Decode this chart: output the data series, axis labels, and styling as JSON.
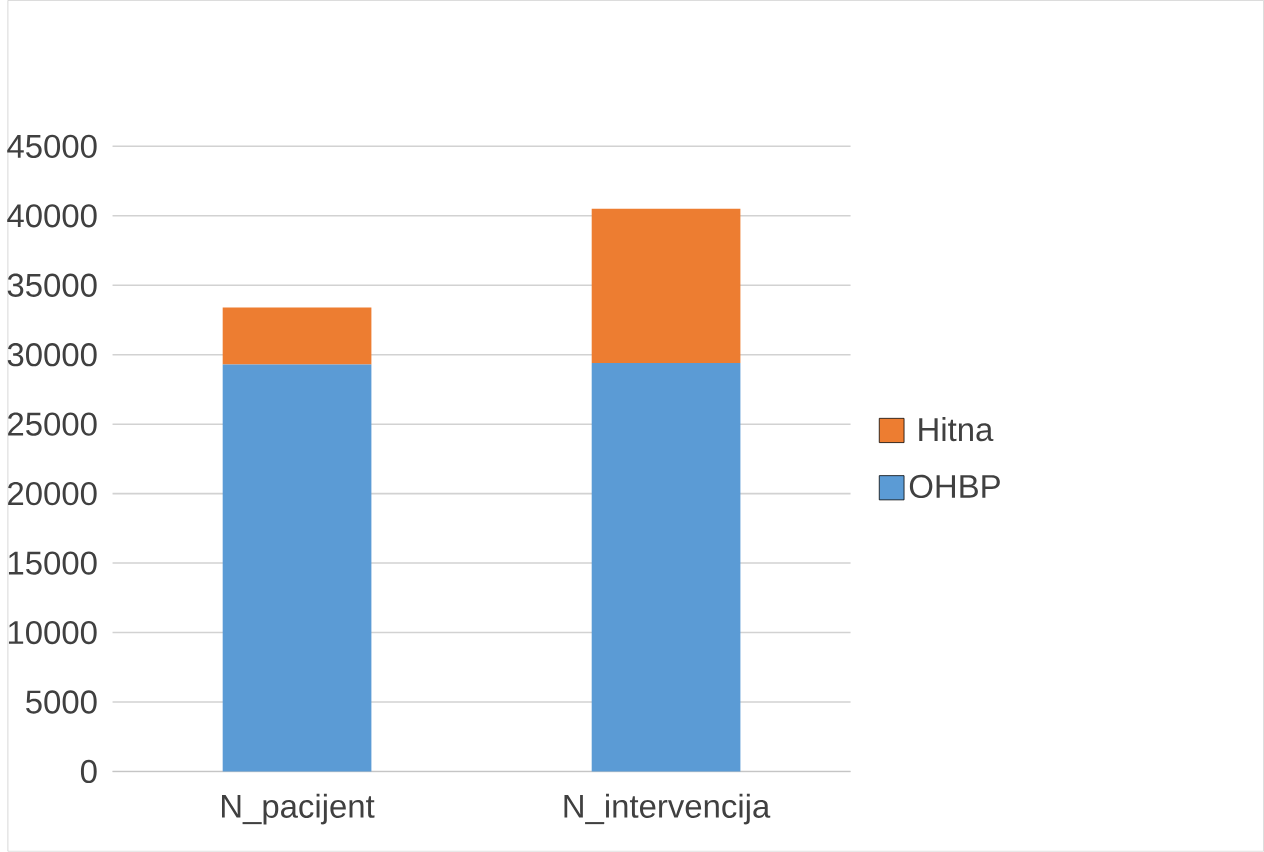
{
  "chart_data": {
    "type": "bar",
    "stacked": true,
    "categories": [
      "N_pacijent",
      "N_intervencija"
    ],
    "series": [
      {
        "name": "OHBP",
        "color": "#5b9bd5",
        "values": [
          29300,
          29400
        ]
      },
      {
        "name": "Hitna",
        "color": "#ed7d31",
        "values": [
          4100,
          11100
        ]
      }
    ],
    "ylim": [
      0,
      45000
    ],
    "yticks": [
      0,
      5000,
      10000,
      15000,
      20000,
      25000,
      30000,
      35000,
      40000,
      45000
    ],
    "grid": "y",
    "legend": "right"
  }
}
